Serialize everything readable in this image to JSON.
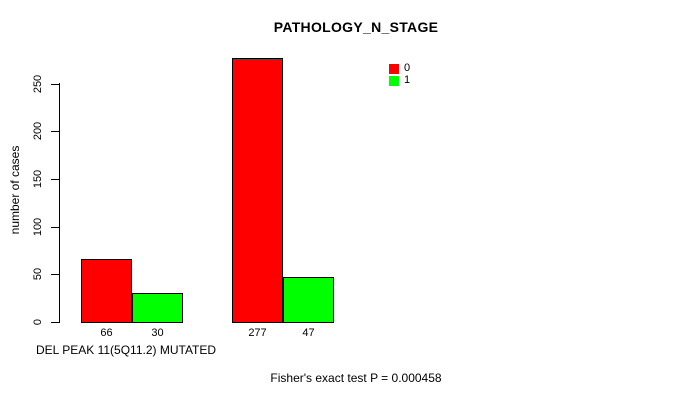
{
  "chart_data": {
    "type": "bar",
    "title": "PATHOLOGY_N_STAGE",
    "ylabel": "number of cases",
    "xlabel": "DEL PEAK 11(5Q11.2) MUTATED",
    "ylim": [
      0,
      250
    ],
    "yticks": [
      0,
      50,
      100,
      150,
      200,
      250
    ],
    "grid": false,
    "legend_position": "top-right",
    "legend": [
      {
        "label": "0",
        "color": "#ff0000"
      },
      {
        "label": "1",
        "color": "#00ff00"
      }
    ],
    "groups": [
      {
        "bars": [
          {
            "series": "0",
            "value": 66,
            "color": "#ff0000"
          },
          {
            "series": "1",
            "value": 30,
            "color": "#00ff00"
          }
        ]
      },
      {
        "bars": [
          {
            "series": "0",
            "value": 277,
            "color": "#ff0000"
          },
          {
            "series": "1",
            "value": 47,
            "color": "#00ff00"
          }
        ]
      }
    ],
    "bar_labels": [
      "66",
      "30",
      "277",
      "47"
    ],
    "annotation": "Fisher's exact test P = 0.000458"
  },
  "colors": {
    "background": "#ffffff",
    "axis": "#000000",
    "text": "#000000",
    "series_0": "#ff0000",
    "series_1": "#00ff00"
  }
}
